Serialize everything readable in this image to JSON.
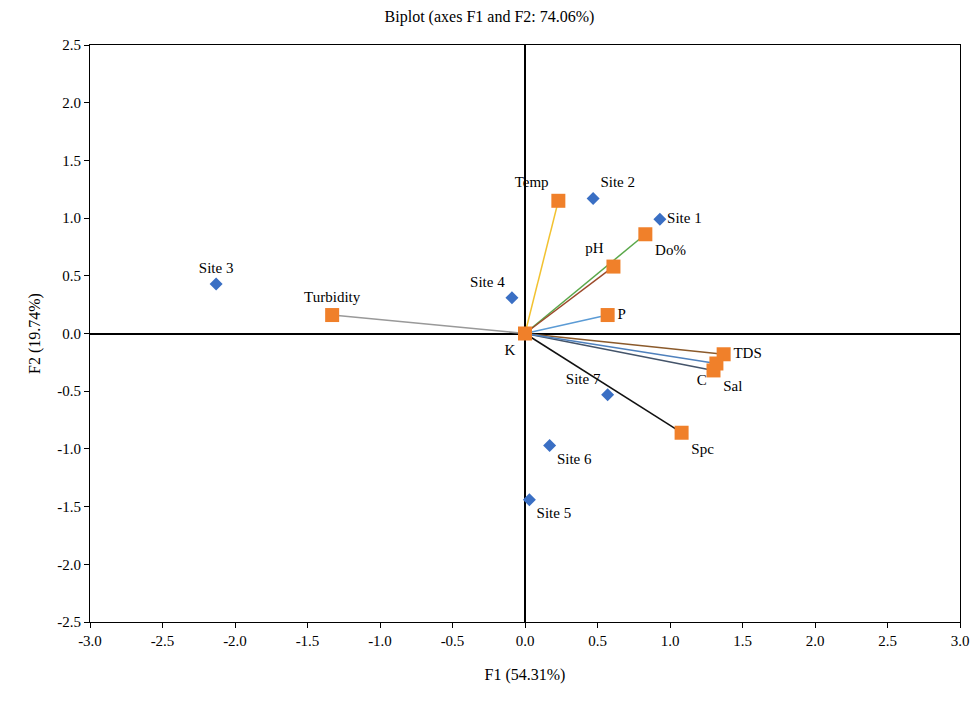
{
  "chart_data": {
    "type": "biplot",
    "title": "Biplot (axes F1 and F2: 74.06%)",
    "x_label": "F1 (54.31%)",
    "y_label": "F2 (19.74%)",
    "xlim": [
      -3.0,
      3.0
    ],
    "ylim": [
      -2.5,
      2.5
    ],
    "xticks": [
      {
        "value": -3.0,
        "label": "-3.0"
      },
      {
        "value": -2.5,
        "label": "-2.5"
      },
      {
        "value": -2.0,
        "label": "-2.0"
      },
      {
        "value": -1.5,
        "label": "-1.5"
      },
      {
        "value": -1.0,
        "label": "-1.0"
      },
      {
        "value": -0.5,
        "label": "-0.5"
      },
      {
        "value": 0.0,
        "label": "0.0"
      },
      {
        "value": 0.5,
        "label": "0.5"
      },
      {
        "value": 1.0,
        "label": "1.0"
      },
      {
        "value": 1.5,
        "label": "1.5"
      },
      {
        "value": 2.0,
        "label": "2.0"
      },
      {
        "value": 2.5,
        "label": "2.5"
      },
      {
        "value": 3.0,
        "label": "3.0"
      }
    ],
    "yticks": [
      {
        "value": -2.5,
        "label": "-2.5"
      },
      {
        "value": -2.0,
        "label": "-2.0"
      },
      {
        "value": -1.5,
        "label": "-1.5"
      },
      {
        "value": -1.0,
        "label": "-1.0"
      },
      {
        "value": -0.5,
        "label": "-0.5"
      },
      {
        "value": 0.0,
        "label": "0.0"
      },
      {
        "value": 0.5,
        "label": "0.5"
      },
      {
        "value": 1.0,
        "label": "1.0"
      },
      {
        "value": 1.5,
        "label": "1.5"
      },
      {
        "value": 2.0,
        "label": "2.0"
      },
      {
        "value": 2.5,
        "label": "2.5"
      }
    ],
    "grid": false,
    "observations": {
      "color": "#3a6fc4",
      "marker": "diamond",
      "points": [
        {
          "label": "Site 1",
          "x": 0.93,
          "y": 0.99
        },
        {
          "label": "Site 2",
          "x": 0.47,
          "y": 1.17
        },
        {
          "label": "Site 3",
          "x": -2.13,
          "y": 0.43
        },
        {
          "label": "Site 4",
          "x": -0.09,
          "y": 0.31
        },
        {
          "label": "Site 5",
          "x": 0.03,
          "y": -1.44
        },
        {
          "label": "Site 6",
          "x": 0.17,
          "y": -0.97
        },
        {
          "label": "Site 7",
          "x": 0.57,
          "y": -0.53
        }
      ]
    },
    "variables": {
      "color": "#f0802a",
      "marker": "square",
      "points": [
        {
          "label": "Temp",
          "x": 0.23,
          "y": 1.15,
          "color": "#f2c230"
        },
        {
          "label": "Do%",
          "x": 0.83,
          "y": 0.86,
          "color": "#5aa84a"
        },
        {
          "label": "pH",
          "x": 0.61,
          "y": 0.58,
          "color": "#9c4a2a"
        },
        {
          "label": "P",
          "x": 0.57,
          "y": 0.16,
          "color": "#5b9bd5"
        },
        {
          "label": "Turbidity",
          "x": -1.33,
          "y": 0.16,
          "color": "#999999"
        },
        {
          "label": "K",
          "x": 0.0,
          "y": 0.0,
          "color": "#7f7f7f"
        },
        {
          "label": "TDS",
          "x": 1.37,
          "y": -0.18,
          "color": "#8b5a2b"
        },
        {
          "label": "Sal",
          "x": 1.3,
          "y": -0.32,
          "color": "#44546a"
        },
        {
          "label": "C",
          "x": 1.32,
          "y": -0.26,
          "color": "#4f81bd"
        },
        {
          "label": "Spc",
          "x": 1.08,
          "y": -0.86,
          "color": "#111111"
        }
      ]
    }
  }
}
